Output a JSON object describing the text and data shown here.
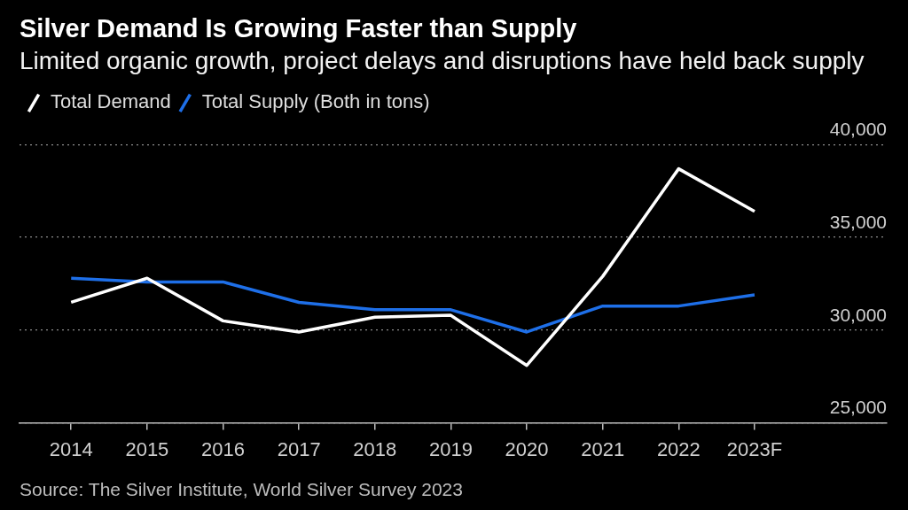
{
  "chart_data": {
    "type": "line",
    "title": "Silver Demand Is Growing Faster than Supply",
    "subtitle": "Limited organic growth, project delays and disruptions have held back supply",
    "categories": [
      "2014",
      "2015",
      "2016",
      "2017",
      "2018",
      "2019",
      "2020",
      "2021",
      "2022",
      "2023F"
    ],
    "series": [
      {
        "name": "Total Demand",
        "color": "#ffffff",
        "values": [
          31500,
          32800,
          30500,
          29900,
          30700,
          30800,
          28100,
          32900,
          38700,
          36400
        ]
      },
      {
        "name": "Total Supply (Both in tons)",
        "color": "#1e6fe8",
        "values": [
          32800,
          32600,
          32600,
          31500,
          31100,
          31100,
          29900,
          31300,
          31300,
          31900
        ]
      }
    ],
    "ylim": [
      25000,
      40000
    ],
    "yticks": [
      {
        "value": 25000,
        "label": "25,000"
      },
      {
        "value": 30000,
        "label": "30,000"
      },
      {
        "value": 35000,
        "label": "35,000"
      },
      {
        "value": 40000,
        "label": "40,000"
      }
    ],
    "grid": "y",
    "legend": "top left",
    "marker": "none",
    "annotations": [
      "Source: The Silver Institute, World Silver Survey 2023"
    ]
  }
}
